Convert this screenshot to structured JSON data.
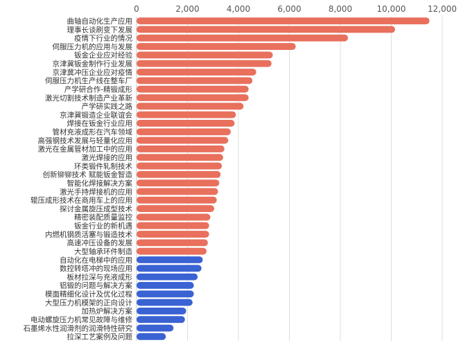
{
  "chart_data": {
    "type": "bar",
    "orientation": "horizontal",
    "title": "",
    "xlabel": "",
    "ylabel": "",
    "xlim": [
      0,
      12000
    ],
    "xticks": [
      0,
      2000,
      4000,
      6000,
      8000,
      10000,
      12000
    ],
    "xtick_labels": [
      "0",
      "2,000",
      "4,000",
      "6,000",
      "8,000",
      "10,000",
      "12,000"
    ],
    "x_axis_position": "top",
    "grid": true,
    "legend": "none",
    "colors": {
      "red": "#e8705d",
      "blue": "#3a62d3",
      "grid": "#dddddd"
    },
    "categories": [
      "曲轴自动化生产应用",
      "理事长谈刷变下发展",
      "疫情下行业的情况",
      "伺服压力机的应用与发展",
      "钣金企业应对经验",
      "京津冀钣金制作行业发展",
      "京津冀冲压企业应对疫情",
      "伺服压力机生产线在整车厂",
      "产学研合作-精锻成形",
      "激光切割技术制造产业革新",
      "产学研实践之路",
      "京津冀锻造企业联谊会",
      "焊接在钣金行业应用",
      "管材充液成形在汽车领域",
      "高强钢技术发展与轻量化应用",
      "激光在金属管材加工中的应用",
      "激光焊接的应用",
      "环类锻件轧制技术",
      "创新铆铆技术 赋能钣金智造",
      "智能化焊接解决方案",
      "激光手持焊接机的应用",
      "辊压成形技术在商用车上的应用",
      "探讨金属旋压成型技术",
      "精密装配质量监控",
      "钣金行业的新机遇",
      "内燃机钢质活塞与锻造技术",
      "高速冲压设备的发展",
      "大型轴承环件制造",
      "自动化在电梯中的应用",
      "数控转塔冲的现场应用",
      "板材拉深与充液成形",
      "铝锻的问题与解决方案",
      "模面精细化设计及优化过程",
      "大型压力机模架的正向设计",
      "加热炉解决方案",
      "电动螺旋压力机常见故障与维修",
      "石墨烯水性润滑剂的润滑特性研究",
      "拉深工艺案例及问题"
    ],
    "values": [
      11500,
      10150,
      8300,
      6250,
      5350,
      5300,
      4700,
      4550,
      4400,
      4400,
      4200,
      3900,
      3850,
      3700,
      3600,
      3450,
      3400,
      3350,
      3300,
      3250,
      3200,
      3150,
      3050,
      2900,
      2850,
      2850,
      2800,
      2750,
      2600,
      2550,
      2400,
      2250,
      2250,
      2200,
      1950,
      1900,
      1450,
      1150
    ],
    "bar_colors": [
      "red",
      "red",
      "red",
      "red",
      "red",
      "red",
      "red",
      "red",
      "red",
      "red",
      "red",
      "red",
      "red",
      "red",
      "red",
      "red",
      "red",
      "red",
      "red",
      "red",
      "red",
      "red",
      "red",
      "red",
      "red",
      "red",
      "red",
      "red",
      "blue",
      "blue",
      "blue",
      "blue",
      "blue",
      "blue",
      "blue",
      "blue",
      "blue",
      "blue"
    ]
  }
}
